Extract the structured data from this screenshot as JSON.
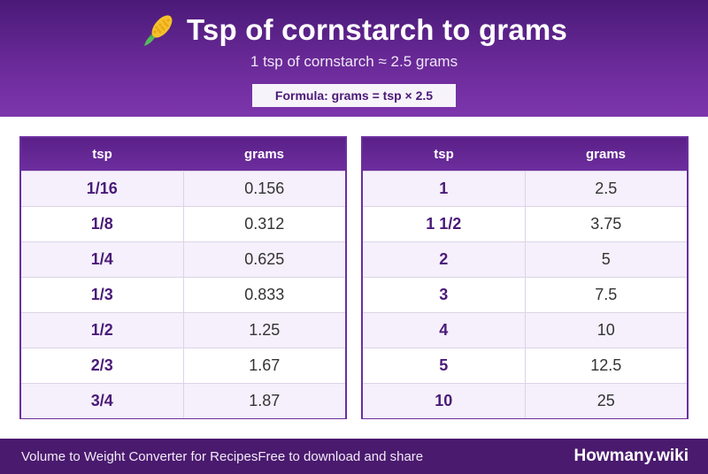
{
  "header": {
    "title": "Tsp of cornstarch to grams",
    "subtitle": "1 tsp of cornstarch ≈ 2.5 grams",
    "formula": "Formula: grams = tsp × 2.5",
    "icon": "corn-icon",
    "colors": {
      "primary": "#6a2a98",
      "dark": "#4a1a78"
    }
  },
  "tables": [
    {
      "headers": [
        "tsp",
        "grams"
      ],
      "rows": [
        [
          "1/16",
          "0.156"
        ],
        [
          "1/8",
          "0.312"
        ],
        [
          "1/4",
          "0.625"
        ],
        [
          "1/3",
          "0.833"
        ],
        [
          "1/2",
          "1.25"
        ],
        [
          "2/3",
          "1.67"
        ],
        [
          "3/4",
          "1.87"
        ]
      ]
    },
    {
      "headers": [
        "tsp",
        "grams"
      ],
      "rows": [
        [
          "1",
          "2.5"
        ],
        [
          "1 1/2",
          "3.75"
        ],
        [
          "2",
          "5"
        ],
        [
          "3",
          "7.5"
        ],
        [
          "4",
          "10"
        ],
        [
          "5",
          "12.5"
        ],
        [
          "10",
          "25"
        ]
      ]
    }
  ],
  "footer": {
    "left": "Volume to Weight Converter for Recipes",
    "middle": "Free to download and share",
    "brand": "Howmany.wiki"
  }
}
